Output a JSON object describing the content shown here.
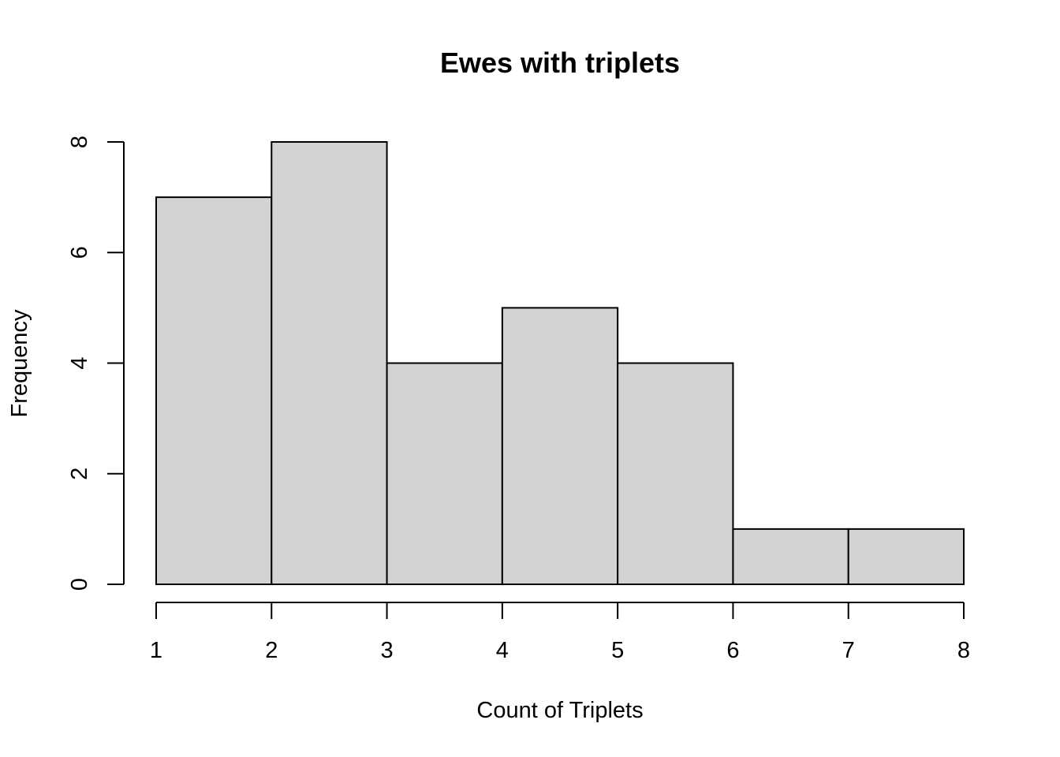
{
  "chart_data": {
    "type": "histogram",
    "title": "Ewes with triplets",
    "xlabel": "Count of Triplets",
    "ylabel": "Frequency",
    "bins": [
      {
        "start": 1,
        "end": 2,
        "count": 7
      },
      {
        "start": 2,
        "end": 3,
        "count": 8
      },
      {
        "start": 3,
        "end": 4,
        "count": 4
      },
      {
        "start": 4,
        "end": 5,
        "count": 5
      },
      {
        "start": 5,
        "end": 6,
        "count": 4
      },
      {
        "start": 6,
        "end": 7,
        "count": 1
      },
      {
        "start": 7,
        "end": 8,
        "count": 1
      }
    ],
    "xlim": [
      1,
      8
    ],
    "ylim": [
      0,
      8
    ],
    "xticks": [
      "1",
      "2",
      "3",
      "4",
      "5",
      "6",
      "7",
      "8"
    ],
    "yticks": [
      "0",
      "2",
      "4",
      "6",
      "8"
    ],
    "bar_fill": "#d3d3d3",
    "bar_stroke": "#000000",
    "grid": false,
    "legend": "none"
  }
}
